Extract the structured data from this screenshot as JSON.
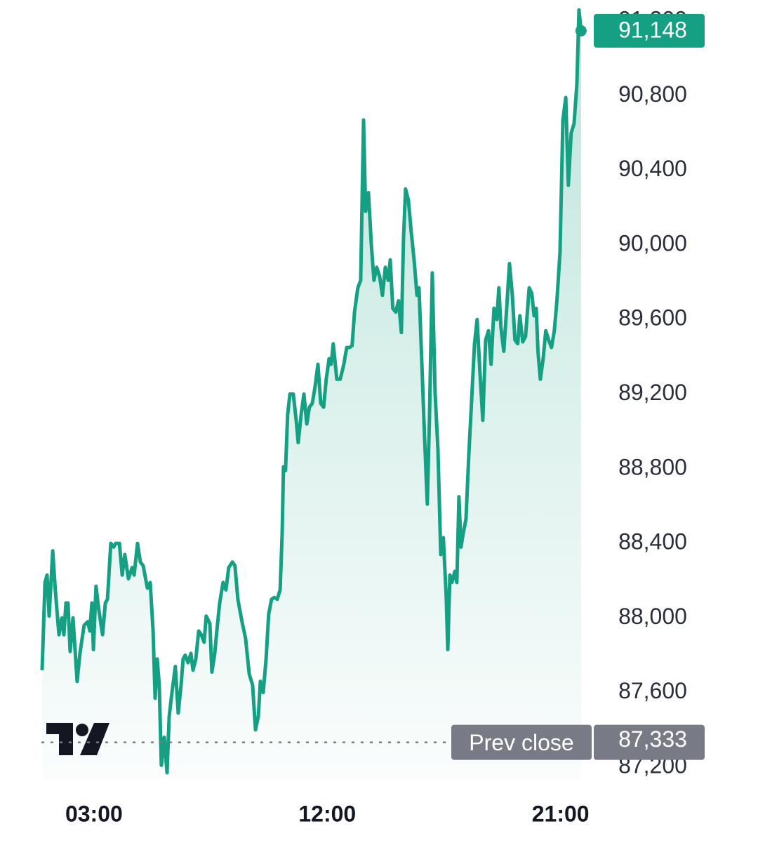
{
  "chart_data": {
    "type": "area",
    "color": "#15a083",
    "xlim": [
      1,
      22.2
    ],
    "ylim": [
      87136,
      91313
    ],
    "xticks": [
      {
        "value": 3,
        "label": "03:00"
      },
      {
        "value": 12,
        "label": "12:00"
      },
      {
        "value": 21,
        "label": "21:00"
      }
    ],
    "yticks": [
      {
        "value": 87200,
        "label": "87,200"
      },
      {
        "value": 87600,
        "label": "87,600"
      },
      {
        "value": 88000,
        "label": "88,000"
      },
      {
        "value": 88400,
        "label": "88,400"
      },
      {
        "value": 88800,
        "label": "88,800"
      },
      {
        "value": 89200,
        "label": "89,200"
      },
      {
        "value": 89600,
        "label": "89,600"
      },
      {
        "value": 90000,
        "label": "90,000"
      },
      {
        "value": 90400,
        "label": "90,400"
      },
      {
        "value": 90800,
        "label": "90,800"
      },
      {
        "value": 91200,
        "label": "91,200"
      }
    ],
    "x": [
      1.0,
      1.11,
      1.19,
      1.27,
      1.41,
      1.51,
      1.65,
      1.76,
      1.84,
      1.92,
      2.0,
      2.08,
      2.19,
      2.35,
      2.46,
      2.62,
      2.76,
      2.84,
      2.92,
      2.98,
      3.08,
      3.19,
      3.33,
      3.44,
      3.52,
      3.65,
      3.76,
      3.84,
      3.98,
      4.09,
      4.19,
      4.33,
      4.47,
      4.55,
      4.68,
      4.79,
      4.9,
      5.06,
      5.17,
      5.28,
      5.36,
      5.44,
      5.52,
      5.6,
      5.71,
      5.82,
      5.9,
      6.01,
      6.14,
      6.25,
      6.36,
      6.44,
      6.52,
      6.63,
      6.74,
      6.82,
      6.93,
      7.04,
      7.14,
      7.25,
      7.33,
      7.47,
      7.55,
      7.66,
      7.74,
      7.85,
      7.98,
      8.09,
      8.2,
      8.34,
      8.44,
      8.55,
      8.71,
      8.85,
      8.99,
      9.12,
      9.23,
      9.34,
      9.42,
      9.53,
      9.64,
      9.74,
      9.85,
      9.96,
      10.07,
      10.18,
      10.26,
      10.31,
      10.39,
      10.47,
      10.56,
      10.69,
      10.8,
      10.88,
      10.99,
      11.1,
      11.21,
      11.31,
      11.42,
      11.53,
      11.64,
      11.75,
      11.86,
      11.96,
      12.07,
      12.15,
      12.23,
      12.37,
      12.5,
      12.64,
      12.75,
      12.86,
      12.96,
      13.05,
      13.18,
      13.29,
      13.4,
      13.48,
      13.59,
      13.7,
      13.8,
      13.91,
      14.02,
      14.13,
      14.24,
      14.35,
      14.43,
      14.53,
      14.64,
      14.75,
      14.86,
      14.94,
      15.02,
      15.13,
      15.24,
      15.35,
      15.46,
      15.54,
      15.65,
      15.75,
      15.86,
      15.94,
      16.05,
      16.16,
      16.27,
      16.38,
      16.48,
      16.59,
      16.65,
      16.73,
      16.81,
      16.92,
      17.0,
      17.08,
      17.16,
      17.24,
      17.35,
      17.46,
      17.57,
      17.68,
      17.78,
      17.89,
      18.0,
      18.11,
      18.22,
      18.32,
      18.43,
      18.54,
      18.62,
      18.7,
      18.81,
      18.92,
      19.03,
      19.14,
      19.24,
      19.35,
      19.43,
      19.54,
      19.65,
      19.79,
      19.89,
      19.98,
      20.06,
      20.13,
      20.22,
      20.33,
      20.43,
      20.54,
      20.65,
      20.76,
      20.86,
      20.98,
      21.09,
      21.2,
      21.3,
      21.41,
      21.52,
      21.63,
      21.71,
      21.79
    ],
    "values": [
      87720,
      88190,
      88230,
      88010,
      88360,
      88150,
      87910,
      88000,
      87910,
      88080,
      88080,
      87820,
      88000,
      87660,
      87810,
      87960,
      87980,
      87930,
      88080,
      87830,
      88170,
      88040,
      87910,
      88080,
      88100,
      88400,
      88380,
      88400,
      88400,
      88230,
      88340,
      88210,
      88270,
      88230,
      88400,
      88300,
      88280,
      88160,
      88190,
      87930,
      87570,
      87780,
      87640,
      87210,
      87360,
      87170,
      87470,
      87600,
      87740,
      87490,
      87640,
      87780,
      87800,
      87760,
      87810,
      87720,
      87780,
      87930,
      87910,
      87870,
      88010,
      87970,
      87710,
      87810,
      87930,
      88080,
      88190,
      88150,
      88270,
      88300,
      88280,
      88100,
      87980,
      87890,
      87700,
      87640,
      87400,
      87470,
      87660,
      87600,
      87780,
      88020,
      88100,
      88110,
      88100,
      88150,
      88450,
      88810,
      88790,
      89090,
      89200,
      89200,
      89060,
      88940,
      89090,
      89200,
      89040,
      89130,
      89150,
      89240,
      89360,
      89150,
      89130,
      89280,
      89390,
      89360,
      89470,
      89280,
      89280,
      89360,
      89450,
      89450,
      89460,
      89640,
      89770,
      89810,
      90670,
      90180,
      90280,
      90000,
      89810,
      89880,
      89830,
      89730,
      89880,
      89810,
      89920,
      89660,
      89640,
      89700,
      89530,
      90030,
      90300,
      90240,
      90070,
      89920,
      89730,
      89770,
      89360,
      88980,
      88610,
      89060,
      89850,
      89210,
      88900,
      88340,
      88430,
      88110,
      87830,
      88230,
      88190,
      88250,
      88190,
      88650,
      88380,
      88450,
      88530,
      88870,
      89170,
      89470,
      89600,
      89320,
      89060,
      89490,
      89540,
      89360,
      89660,
      89600,
      89770,
      89560,
      89430,
      89660,
      89900,
      89730,
      89490,
      89470,
      89620,
      89480,
      89510,
      89770,
      89740,
      89620,
      89660,
      89430,
      89280,
      89390,
      89540,
      89490,
      89450,
      89540,
      89700,
      89960,
      90670,
      90790,
      90320,
      90600,
      90650,
      90860,
      91260,
      91148
    ],
    "last_price": {
      "value": 91148,
      "label": "91,148"
    },
    "prev_close": {
      "label": "Prev close",
      "value": 87333,
      "value_label": "87,333"
    }
  }
}
